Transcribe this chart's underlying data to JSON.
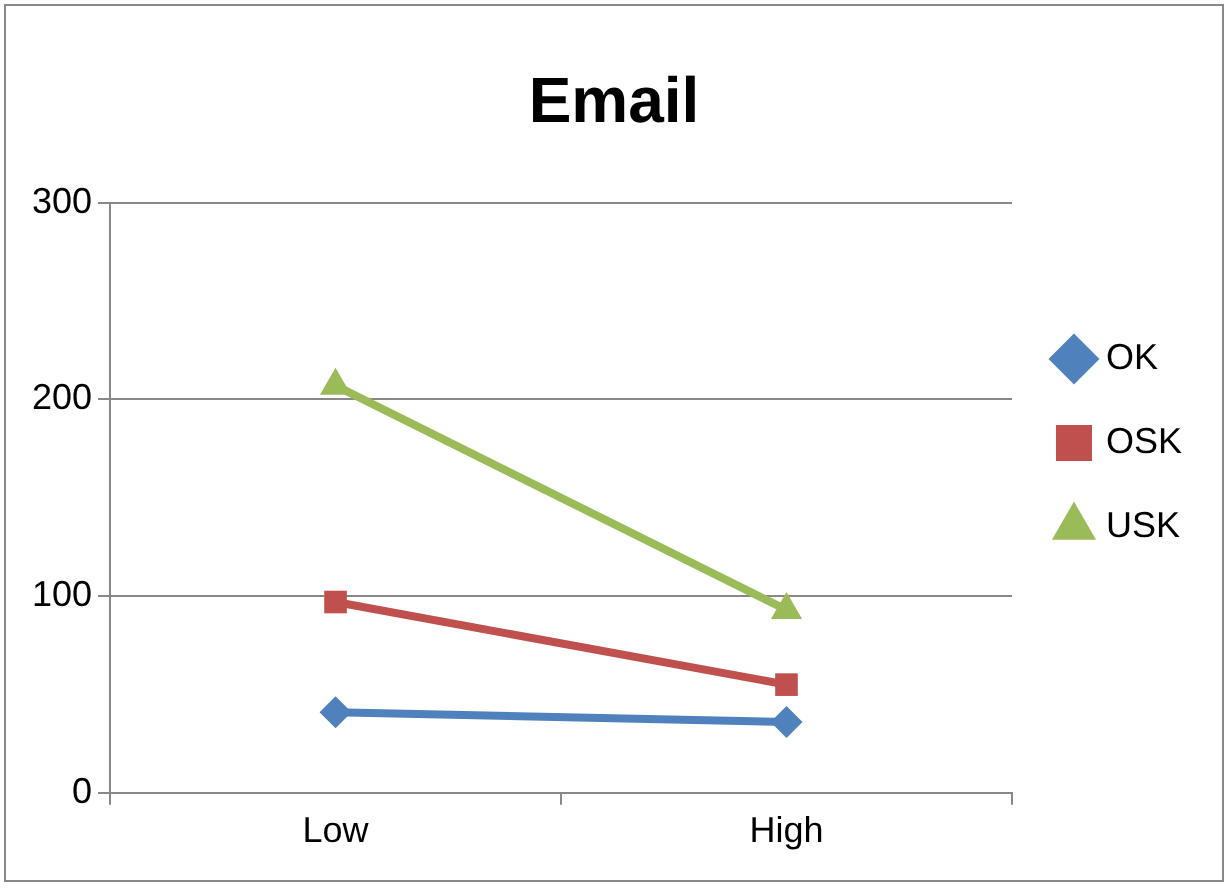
{
  "chart_data": {
    "type": "line",
    "title": "Email",
    "categories": [
      "Low",
      "High"
    ],
    "series": [
      {
        "name": "OK",
        "color": "#4f81bd",
        "values": [
          41,
          36
        ],
        "marker": "diamond"
      },
      {
        "name": "OSK",
        "color": "#c0504d",
        "values": [
          97,
          55
        ],
        "marker": "square"
      },
      {
        "name": "USK",
        "color": "#9bbb59",
        "values": [
          207,
          93
        ],
        "marker": "triangle"
      }
    ],
    "ylim": [
      0,
      300
    ],
    "yticks": [
      0,
      100,
      200,
      300
    ],
    "grid": "y",
    "legend": "right",
    "line_style": "solid"
  }
}
